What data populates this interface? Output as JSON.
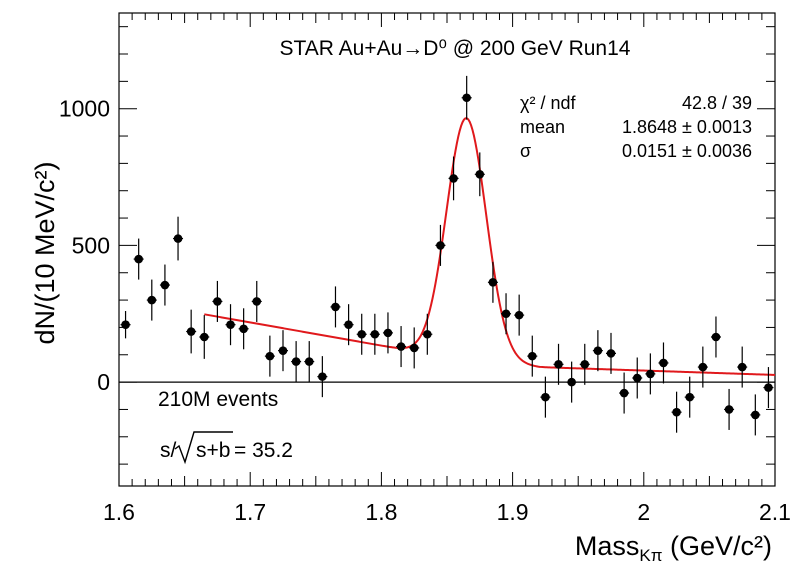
{
  "chart_data": {
    "type": "scatter",
    "title": "STAR Au+Au→D⁰ @ 200 GeV Run14",
    "xlabel": {
      "main": "Mass",
      "sub": "Kπ",
      "unit": " (GeV/c²)"
    },
    "ylabel": "dN/(10 MeV/c²)",
    "xlim": [
      1.6,
      2.1
    ],
    "ylim": [
      -380,
      1350
    ],
    "x_ticks": [
      1.6,
      1.7,
      1.8,
      1.9,
      2.0,
      2.1
    ],
    "x_tick_labels": [
      "1.6",
      "1.7",
      "1.8",
      "1.9",
      "2",
      "2.1"
    ],
    "y_ticks": [
      0,
      500,
      1000
    ],
    "y_tick_labels": [
      "0",
      "500",
      "1000"
    ],
    "zero_line": true,
    "grid": false,
    "fit_stats": {
      "rows": [
        {
          "label": "χ² / ndf",
          "value": "42.8 / 39"
        },
        {
          "label": "mean",
          "value": "1.8648 ± 0.0013"
        },
        {
          "label": "σ",
          "value": "0.0151 ± 0.0036"
        }
      ]
    },
    "annotations": {
      "events": "210M events",
      "significance_prefix": "s/",
      "significance_radicand": "s+b",
      "significance_value": " = 35.2"
    },
    "data_points": [
      {
        "x": 1.605,
        "y": 210,
        "err": 50
      },
      {
        "x": 1.615,
        "y": 450,
        "err": 75
      },
      {
        "x": 1.625,
        "y": 300,
        "err": 75
      },
      {
        "x": 1.635,
        "y": 355,
        "err": 75
      },
      {
        "x": 1.645,
        "y": 525,
        "err": 80
      },
      {
        "x": 1.655,
        "y": 185,
        "err": 80
      },
      {
        "x": 1.665,
        "y": 165,
        "err": 80
      },
      {
        "x": 1.675,
        "y": 295,
        "err": 75
      },
      {
        "x": 1.685,
        "y": 210,
        "err": 75
      },
      {
        "x": 1.695,
        "y": 195,
        "err": 75
      },
      {
        "x": 1.705,
        "y": 295,
        "err": 75
      },
      {
        "x": 1.715,
        "y": 95,
        "err": 75
      },
      {
        "x": 1.725,
        "y": 115,
        "err": 75
      },
      {
        "x": 1.735,
        "y": 75,
        "err": 75
      },
      {
        "x": 1.745,
        "y": 75,
        "err": 75
      },
      {
        "x": 1.755,
        "y": 20,
        "err": 75
      },
      {
        "x": 1.765,
        "y": 275,
        "err": 75
      },
      {
        "x": 1.775,
        "y": 210,
        "err": 75
      },
      {
        "x": 1.785,
        "y": 175,
        "err": 75
      },
      {
        "x": 1.795,
        "y": 175,
        "err": 75
      },
      {
        "x": 1.805,
        "y": 180,
        "err": 75
      },
      {
        "x": 1.815,
        "y": 130,
        "err": 75
      },
      {
        "x": 1.825,
        "y": 125,
        "err": 75
      },
      {
        "x": 1.835,
        "y": 175,
        "err": 75
      },
      {
        "x": 1.845,
        "y": 500,
        "err": 75
      },
      {
        "x": 1.855,
        "y": 745,
        "err": 80
      },
      {
        "x": 1.865,
        "y": 1040,
        "err": 80
      },
      {
        "x": 1.875,
        "y": 760,
        "err": 80
      },
      {
        "x": 1.885,
        "y": 365,
        "err": 75
      },
      {
        "x": 1.895,
        "y": 250,
        "err": 75
      },
      {
        "x": 1.905,
        "y": 245,
        "err": 75
      },
      {
        "x": 1.915,
        "y": 95,
        "err": 75
      },
      {
        "x": 1.925,
        "y": -55,
        "err": 75
      },
      {
        "x": 1.935,
        "y": 65,
        "err": 75
      },
      {
        "x": 1.945,
        "y": 0,
        "err": 75
      },
      {
        "x": 1.955,
        "y": 65,
        "err": 75
      },
      {
        "x": 1.965,
        "y": 115,
        "err": 75
      },
      {
        "x": 1.975,
        "y": 105,
        "err": 75
      },
      {
        "x": 1.985,
        "y": -40,
        "err": 75
      },
      {
        "x": 1.995,
        "y": 15,
        "err": 75
      },
      {
        "x": 2.005,
        "y": 30,
        "err": 75
      },
      {
        "x": 2.015,
        "y": 70,
        "err": 75
      },
      {
        "x": 2.025,
        "y": -110,
        "err": 75
      },
      {
        "x": 2.035,
        "y": -55,
        "err": 75
      },
      {
        "x": 2.045,
        "y": 55,
        "err": 75
      },
      {
        "x": 2.055,
        "y": 165,
        "err": 75
      },
      {
        "x": 2.065,
        "y": -100,
        "err": 75
      },
      {
        "x": 2.075,
        "y": 55,
        "err": 75
      },
      {
        "x": 2.085,
        "y": -120,
        "err": 75
      },
      {
        "x": 2.095,
        "y": -20,
        "err": 75
      }
    ],
    "fit_curve": {
      "color": "#e0191c",
      "x_range": [
        1.665,
        2.1
      ],
      "background": {
        "a": 248,
        "b": 1.665,
        "c": 1180,
        "d": 0.9,
        "e": 55
      },
      "gauss": {
        "amplitude": 878,
        "mean": 1.8648,
        "sigma": 0.0151
      }
    }
  }
}
